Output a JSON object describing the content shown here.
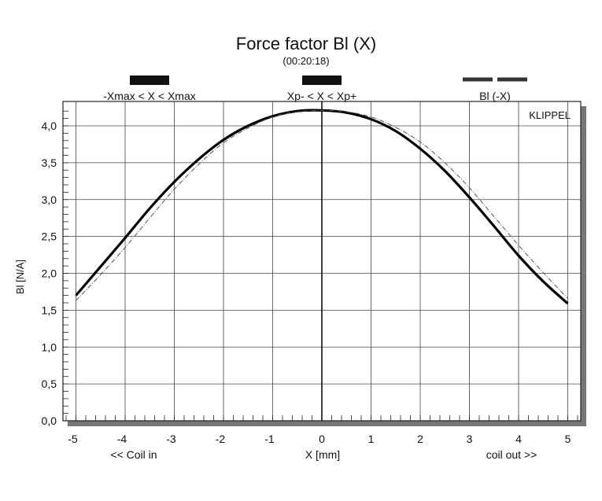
{
  "chart_data": {
    "type": "line",
    "title": "Force factor Bl (X)",
    "subtitle": "(00:20:18)",
    "watermark": "KLIPPEL",
    "xlabel": "X [mm]",
    "ylabel": "Bl [N/A]",
    "x_left_label": "<< Coil in",
    "x_right_label": "coil out >>",
    "xlim": [
      -5.2,
      5.2
    ],
    "ylim": [
      0,
      4.2
    ],
    "xticks": [
      -5,
      -4,
      -3,
      -2,
      -1,
      0,
      1,
      2,
      3,
      4,
      5
    ],
    "yticks": [
      0,
      0.5,
      1,
      1.5,
      2,
      2.5,
      3,
      3.5,
      4
    ],
    "ytick_labels": [
      "0,0",
      "0,5",
      "1,0",
      "1,5",
      "2,0",
      "2,5",
      "3,0",
      "3,5",
      "4,0"
    ],
    "xtick_labels": [
      "-5",
      "-4",
      "-3",
      "-2",
      "-1",
      "0",
      "1",
      "2",
      "3",
      "4",
      "5"
    ],
    "grid": true,
    "legend": [
      {
        "label": "-Xmax < X < Xmax",
        "style": "thick-bar"
      },
      {
        "label": "Xp- < X < Xp+",
        "style": "thick-bar"
      },
      {
        "label": "Bl (-X)",
        "style": "dashed"
      }
    ],
    "series": [
      {
        "style": "thick",
        "x": [
          -5,
          -4.5,
          -4,
          -3.5,
          -3,
          -2.5,
          -2,
          -1.5,
          -1,
          -0.5,
          0,
          0.5,
          1,
          1.5,
          2,
          2.5,
          3,
          3.5,
          4,
          4.5,
          5
        ],
        "y": [
          1.7,
          2.09,
          2.48,
          2.88,
          3.24,
          3.55,
          3.81,
          4.0,
          4.13,
          4.2,
          4.21,
          4.18,
          4.09,
          3.93,
          3.69,
          3.39,
          3.03,
          2.64,
          2.24,
          1.89,
          1.59
        ]
      },
      {
        "style": "dashed",
        "x": [
          -5,
          -4.5,
          -4,
          -3.5,
          -3,
          -2.5,
          -2,
          -1.5,
          -1,
          -0.5,
          0,
          0.5,
          1,
          1.5,
          2,
          2.5,
          3,
          3.5,
          4,
          4.5,
          5
        ],
        "y": [
          1.63,
          1.98,
          2.35,
          2.75,
          3.14,
          3.48,
          3.77,
          3.97,
          4.12,
          4.19,
          4.21,
          4.19,
          4.12,
          3.98,
          3.78,
          3.5,
          3.16,
          2.77,
          2.38,
          2.01,
          1.66
        ]
      }
    ]
  }
}
